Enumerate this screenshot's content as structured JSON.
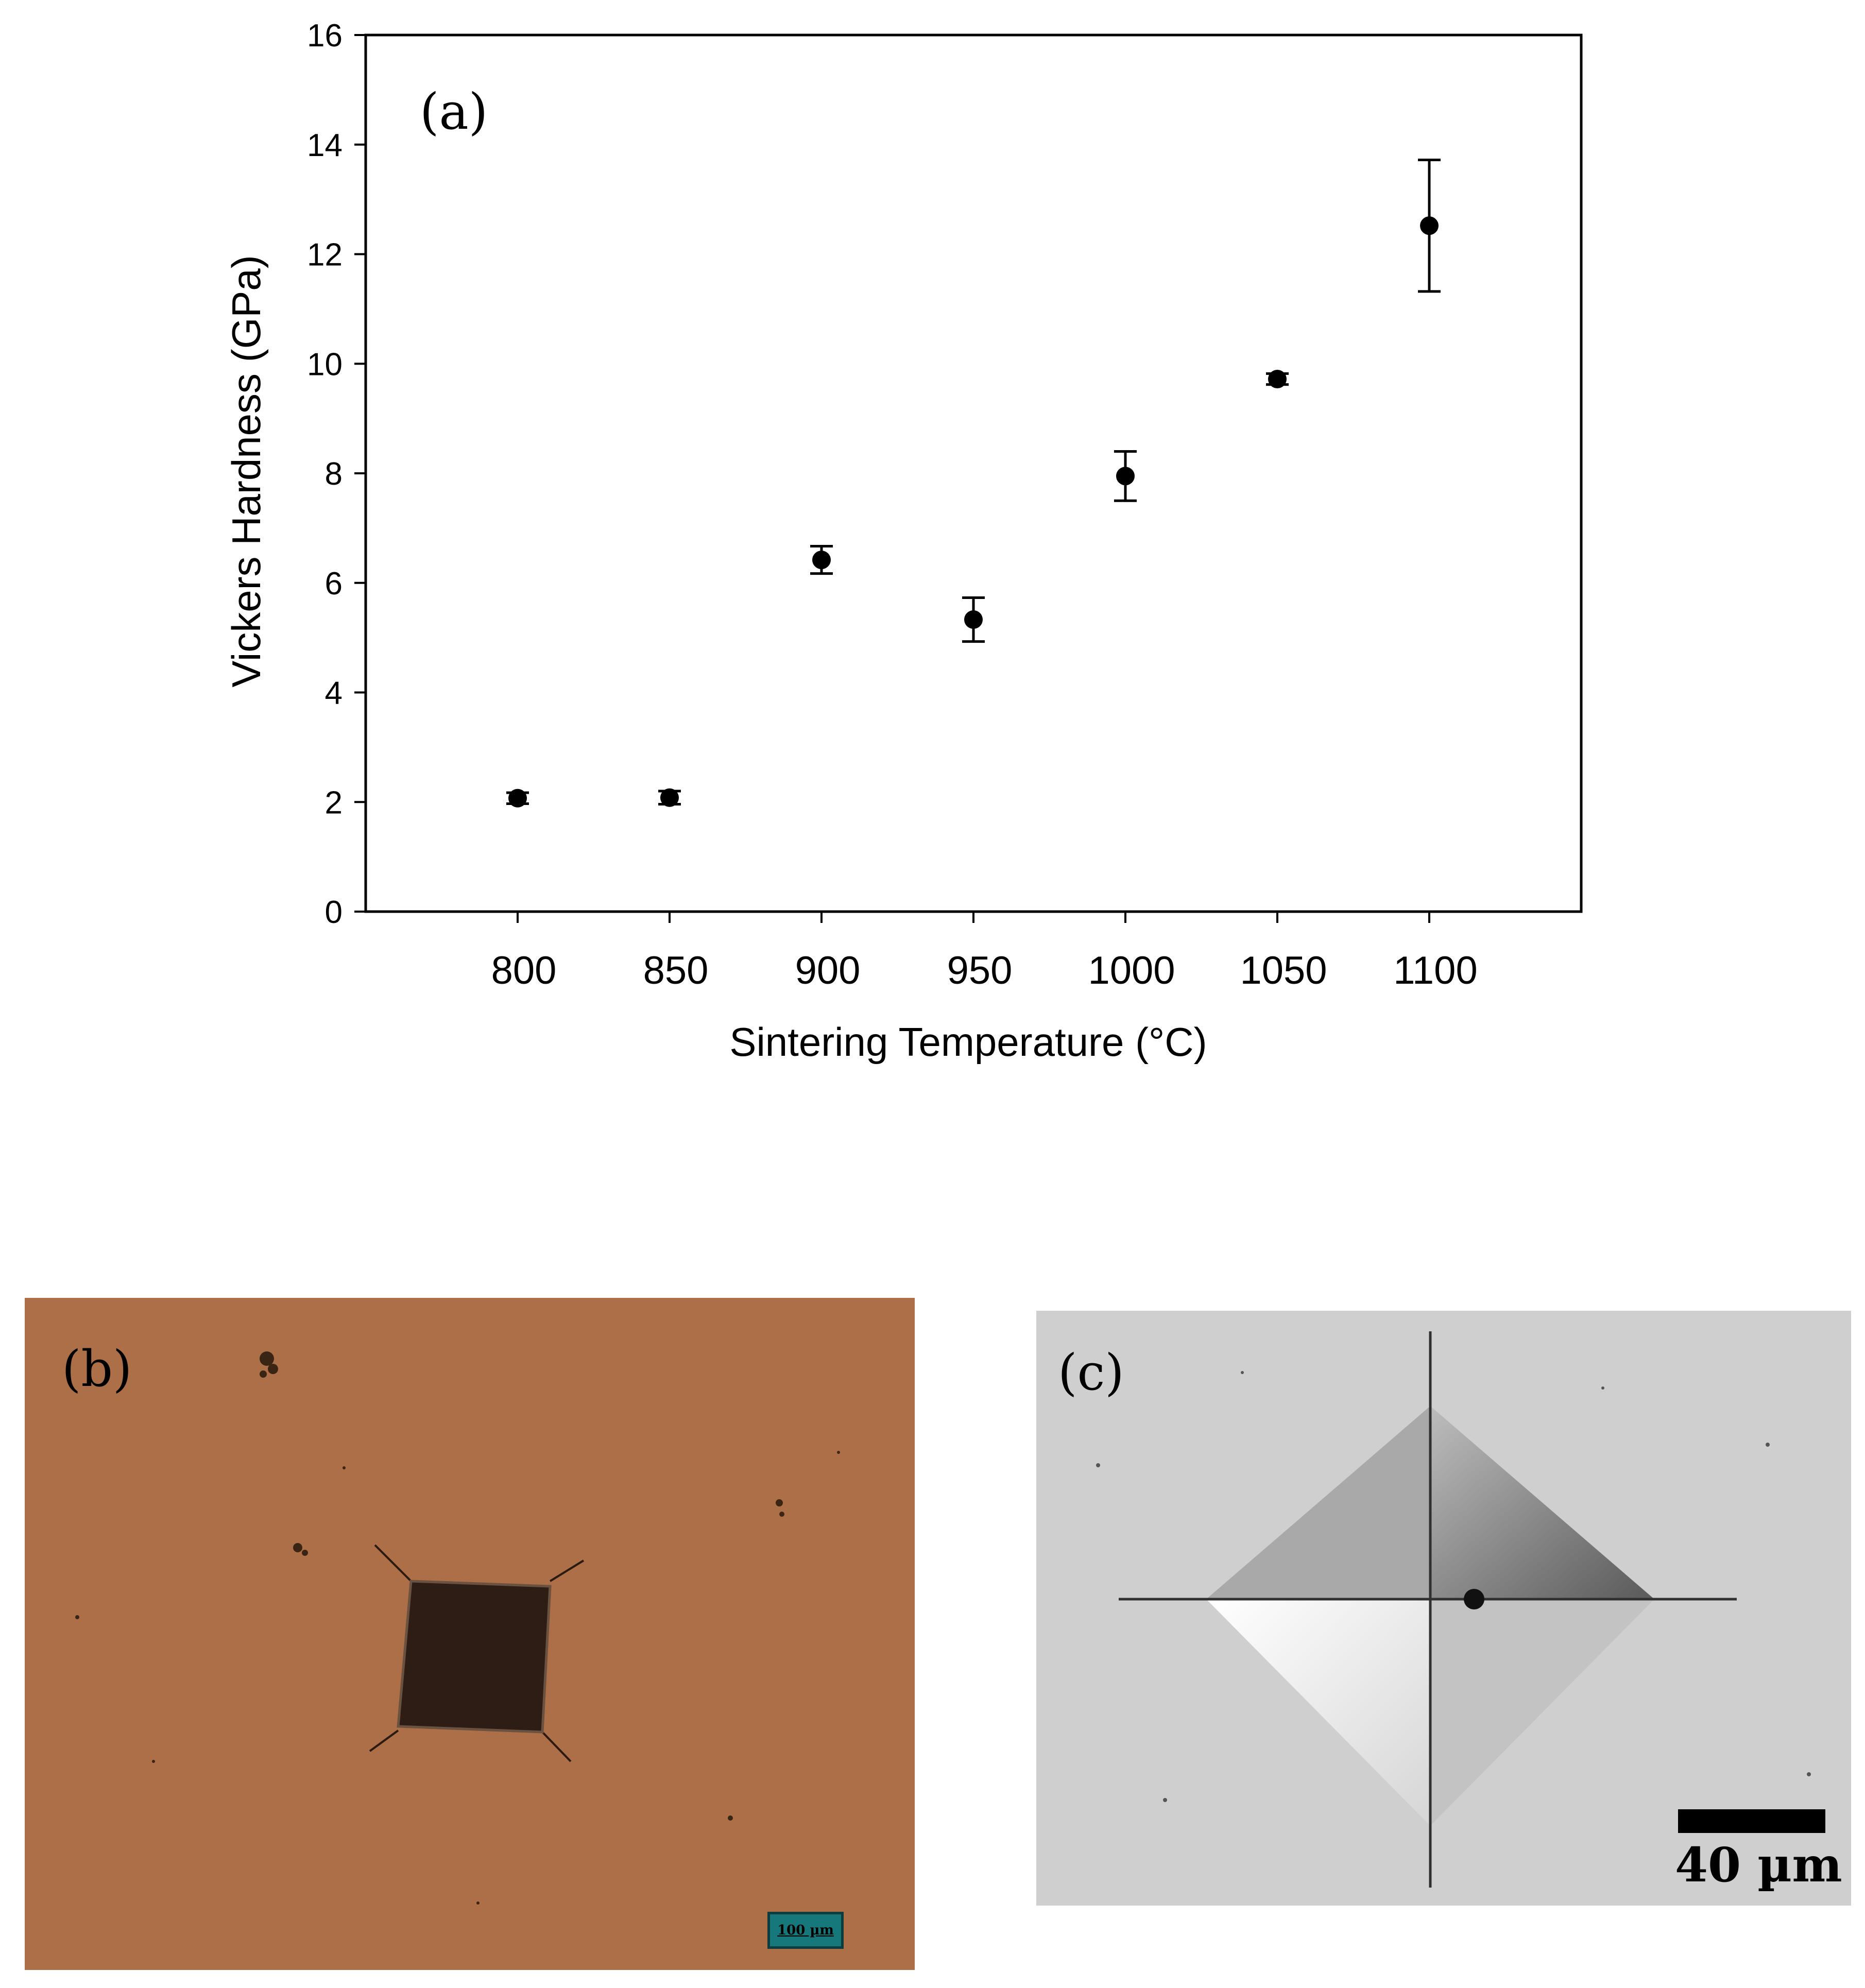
{
  "chart_data": {
    "type": "scatter",
    "panel_label": "(a)",
    "xlabel": "Sintering Temperature (°C)",
    "ylabel": "Vickers Hardness (GPa)",
    "x_ticks": [
      "800",
      "850",
      "900",
      "950",
      "1000",
      "1050",
      "1100"
    ],
    "y_ticks": [
      "0",
      "2",
      "4",
      "6",
      "8",
      "10",
      "12",
      "14",
      "16"
    ],
    "xlim": [
      750,
      1150
    ],
    "ylim": [
      0,
      16
    ],
    "grid": false,
    "legend": "none",
    "marker_color": "#000000",
    "points": [
      {
        "x": 800,
        "y": 2.07,
        "err": 0.1
      },
      {
        "x": 850,
        "y": 2.08,
        "err": 0.12
      },
      {
        "x": 900,
        "y": 6.42,
        "err": 0.25
      },
      {
        "x": 950,
        "y": 5.33,
        "err": 0.4
      },
      {
        "x": 1000,
        "y": 7.95,
        "err": 0.45
      },
      {
        "x": 1050,
        "y": 9.72,
        "err": 0.1
      },
      {
        "x": 1100,
        "y": 12.52,
        "err": 1.2
      }
    ]
  },
  "panels": {
    "b": {
      "label": "(b)",
      "scale_bar": "100 µm",
      "background_color": "#a86b45"
    },
    "c": {
      "label": "(c)",
      "scale_bar": "40 µm",
      "background_color": "#cfcfcf"
    }
  }
}
